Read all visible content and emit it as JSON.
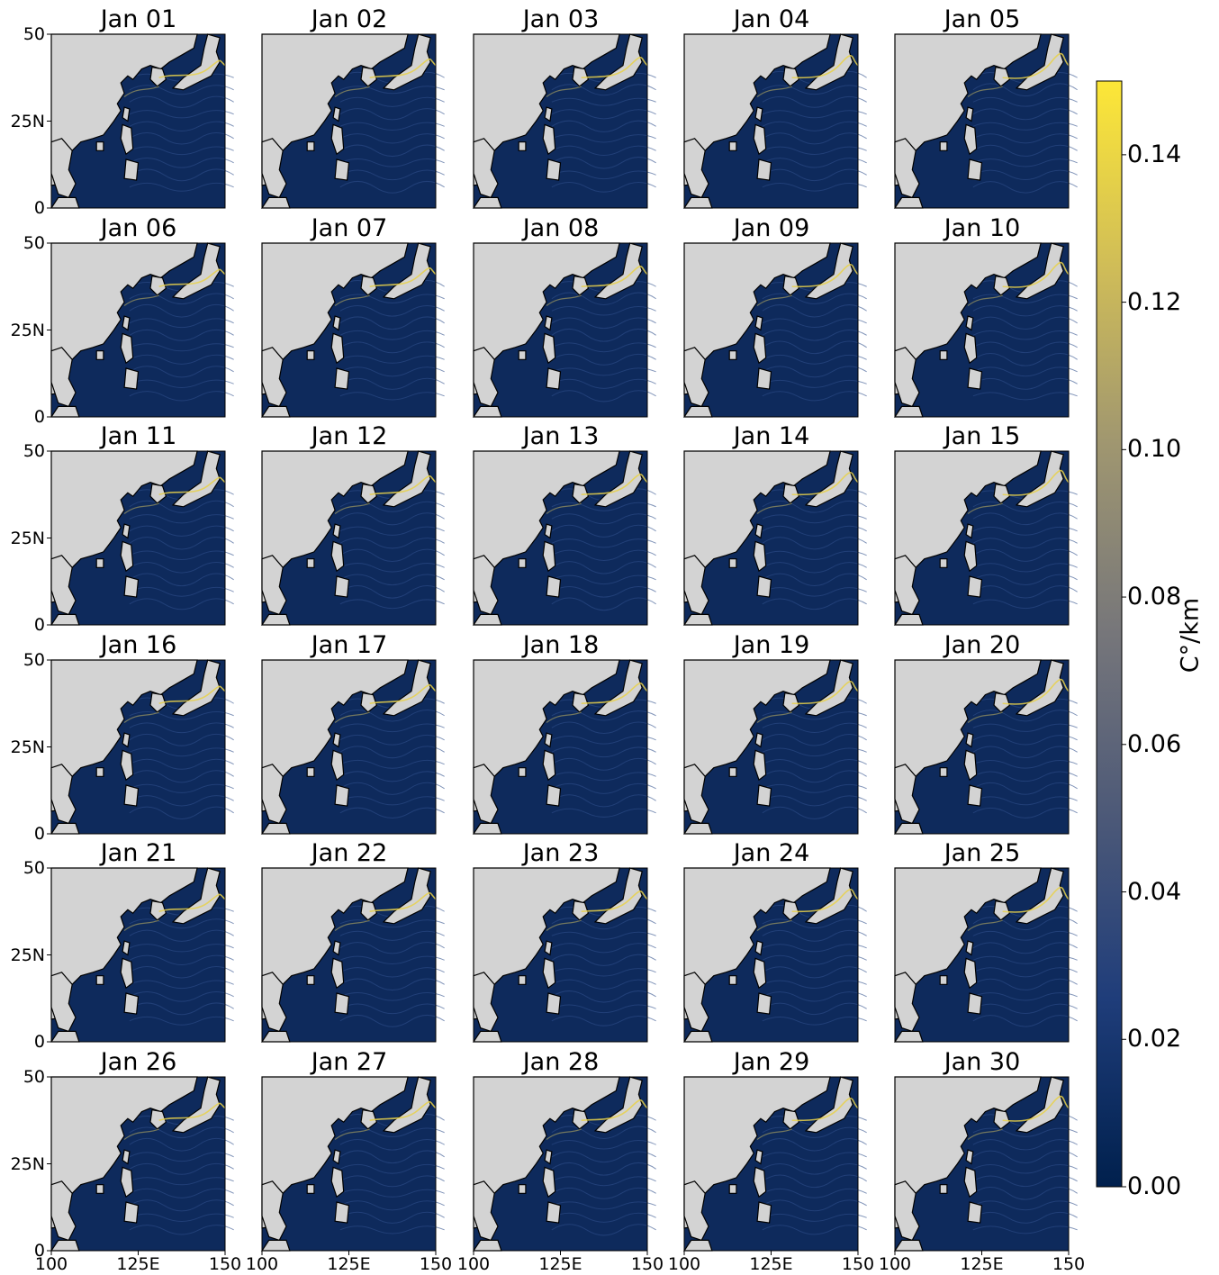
{
  "panels": [
    "Jan 01",
    "Jan 02",
    "Jan 03",
    "Jan 04",
    "Jan 05",
    "Jan 06",
    "Jan 07",
    "Jan 08",
    "Jan 09",
    "Jan 10",
    "Jan 11",
    "Jan 12",
    "Jan 13",
    "Jan 14",
    "Jan 15",
    "Jan 16",
    "Jan 17",
    "Jan 18",
    "Jan 19",
    "Jan 20",
    "Jan 21",
    "Jan 22",
    "Jan 23",
    "Jan 24",
    "Jan 25",
    "Jan 26",
    "Jan 27",
    "Jan 28",
    "Jan 29",
    "Jan 30"
  ],
  "y_ticks": [
    "50",
    "25N",
    "0"
  ],
  "x_ticks": [
    "100",
    "125E",
    "150"
  ],
  "colorbar": {
    "label": "C°/km",
    "ticks": [
      "0.14",
      "0.12",
      "0.10",
      "0.08",
      "0.06",
      "0.04",
      "0.02",
      "0.00"
    ],
    "range": [
      0.0,
      0.15
    ],
    "colormap": [
      "#00204d",
      "#2b4a8c",
      "#5b6580",
      "#7d7c78",
      "#a59c6e",
      "#d6c356",
      "#fde737"
    ]
  },
  "colors": {
    "land": "#d3d3d3",
    "ocean": "#0e2a5c",
    "front": "#e8d14a",
    "coast": "#000000"
  },
  "map_extent": {
    "lon": [
      100,
      150
    ],
    "lat": [
      0,
      50
    ]
  }
}
